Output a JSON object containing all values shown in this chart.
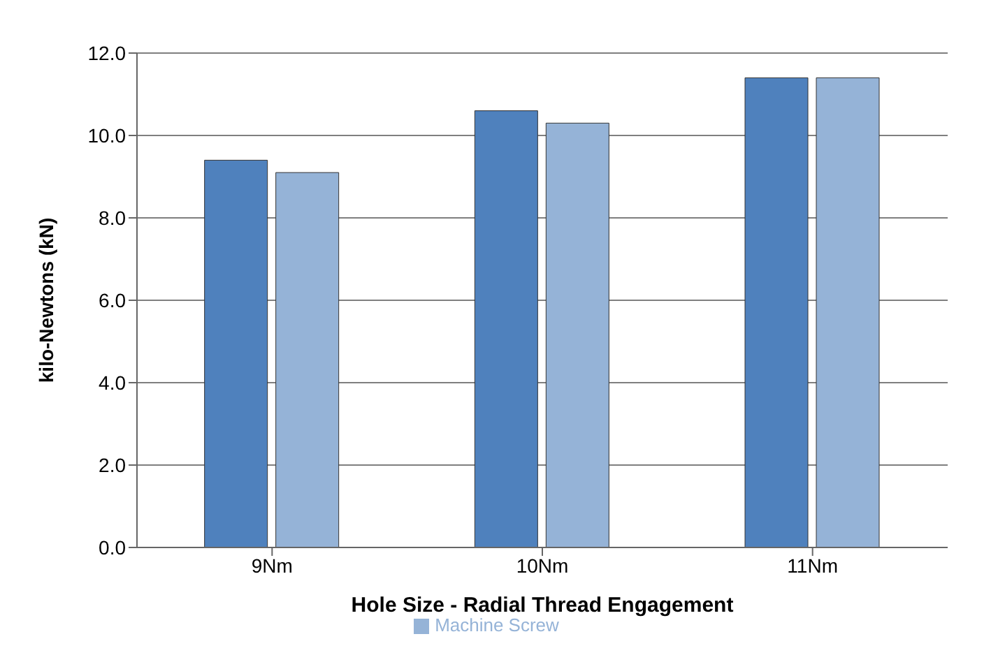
{
  "chart_data": {
    "type": "bar",
    "xlabel": "Hole Size - Radial Thread Engagement",
    "ylabel": "kilo-Newtons (kN)",
    "categories": [
      "9Nm",
      "10Nm",
      "11Nm"
    ],
    "series": [
      {
        "color": "#4f81bd",
        "values": [
          9.4,
          10.6,
          11.4
        ]
      },
      {
        "name": "Machine Screw",
        "color": "#95b3d7",
        "values": [
          9.1,
          10.3,
          11.4
        ]
      }
    ],
    "ylim": [
      0,
      12
    ],
    "yticks": [
      {
        "value": 0,
        "label": "0.0"
      },
      {
        "value": 2,
        "label": "2.0"
      },
      {
        "value": 4,
        "label": "4.0"
      },
      {
        "value": 6,
        "label": "6.0"
      },
      {
        "value": 8,
        "label": "8.0"
      },
      {
        "value": 10,
        "label": "10.0"
      },
      {
        "value": 12,
        "label": "12.0"
      }
    ],
    "grid": "y",
    "legend": "bottom"
  }
}
